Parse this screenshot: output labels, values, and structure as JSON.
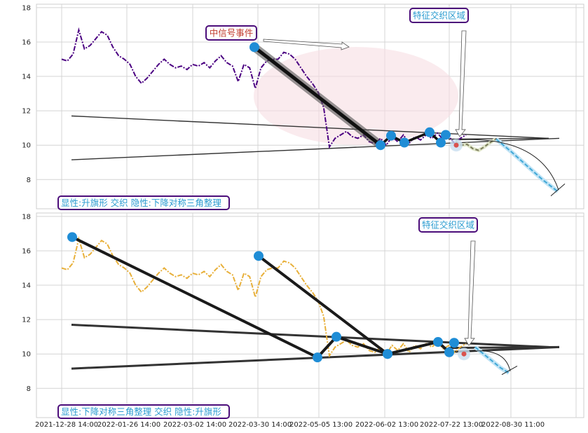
{
  "chart_data": [
    {
      "type": "line",
      "panel": "top",
      "ylim": [
        6.3,
        18.2
      ],
      "yticks": [
        8,
        10,
        12,
        14,
        16,
        18
      ],
      "grid": true,
      "series": [
        {
          "style": "dash-dot",
          "color": "#4b0082",
          "values": [
            15.0,
            14.9,
            15.3,
            16.7,
            15.6,
            15.8,
            16.2,
            16.6,
            16.4,
            15.7,
            15.2,
            15.0,
            14.7,
            14.0,
            13.6,
            13.9,
            14.3,
            14.7,
            15.0,
            14.7,
            14.5,
            14.6,
            14.4,
            14.7,
            14.6,
            14.8,
            14.5,
            14.9,
            15.2,
            14.8,
            14.6,
            13.7,
            14.7,
            14.5,
            13.3,
            14.5,
            14.9,
            15.0,
            15.0,
            15.4,
            15.3,
            15.0,
            14.5,
            14.0,
            13.6,
            13.1,
            12.2,
            9.9,
            10.4,
            10.6,
            10.8,
            10.5,
            10.4,
            10.6,
            10.2,
            10.1,
            10.4,
            10.0,
            10.5,
            10.2,
            10.6,
            10.1,
            10.5,
            10.3,
            10.6,
            10.4,
            10.7,
            10.3,
            10.5,
            10.1,
            10.4,
            10.6
          ]
        },
        {
          "style": "dashed",
          "color": "#7a7a5a",
          "values": [
            10.2,
            10.0,
            10.05,
            9.8,
            9.7,
            9.9,
            10.15,
            10.35
          ]
        },
        {
          "style": "dashed",
          "color": "#3fa7d6",
          "values": [
            10.35,
            9.6,
            8.8,
            8.0,
            7.3
          ]
        }
      ],
      "pattern_points": [
        15.7,
        10.0,
        10.55,
        10.15,
        10.75,
        10.15,
        10.6
      ],
      "annotations": {
        "event": "中信号事件",
        "feature_zone": "特征交织区域",
        "caption": "显性:升旗形 交织 隐性:下降对称三角整理"
      }
    },
    {
      "type": "line",
      "panel": "bottom",
      "ylim": [
        6.3,
        18.2
      ],
      "yticks": [
        8,
        10,
        12,
        14,
        16,
        18
      ],
      "grid": true,
      "xticklabels": [
        "2021-12-28 14:00",
        "2022-01-26 14:00",
        "2022-03-02 14:00",
        "2022-03-30 14:00",
        "2022-05-05 13:00",
        "2022-06-02 13:00",
        "2022-07-22 13:00",
        "2022-08-30 11:00"
      ],
      "series": [
        {
          "style": "dash-dot",
          "color": "#e8b03a",
          "values": [
            15.0,
            14.9,
            15.3,
            16.7,
            15.6,
            15.8,
            16.2,
            16.6,
            16.4,
            15.7,
            15.2,
            15.0,
            14.7,
            14.0,
            13.6,
            13.9,
            14.3,
            14.7,
            15.0,
            14.7,
            14.5,
            14.6,
            14.4,
            14.7,
            14.6,
            14.8,
            14.5,
            14.9,
            15.2,
            14.8,
            14.6,
            13.7,
            14.7,
            14.5,
            13.3,
            14.5,
            14.9,
            15.0,
            15.0,
            15.4,
            15.3,
            15.0,
            14.5,
            14.0,
            13.6,
            13.1,
            12.2,
            9.9,
            10.4,
            10.6,
            10.8,
            10.5,
            10.4,
            10.6,
            10.2,
            10.1,
            10.4,
            10.0,
            10.5,
            10.2,
            10.6,
            10.1,
            10.5,
            10.3,
            10.6,
            10.4,
            10.7,
            10.3,
            10.5,
            10.1,
            10.4,
            10.6
          ]
        },
        {
          "style": "dashed",
          "color": "#3fa7d6",
          "values": [
            10.4,
            10.0,
            9.6,
            9.2,
            8.9
          ]
        }
      ],
      "pattern_points": [
        16.8,
        9.8,
        11.0,
        10.0,
        15.7,
        10.0,
        10.7,
        10.1,
        10.65
      ],
      "annotations": {
        "feature_zone": "特征交织区域",
        "caption": "显性:下降对称三角整理 交织 隐性:升旗形"
      }
    }
  ],
  "colors": {
    "annotation_border": "#4b0d7a",
    "event_text": "#c0392b",
    "zone_text": "#2a9bd0",
    "marker": "#1f8dd6"
  }
}
